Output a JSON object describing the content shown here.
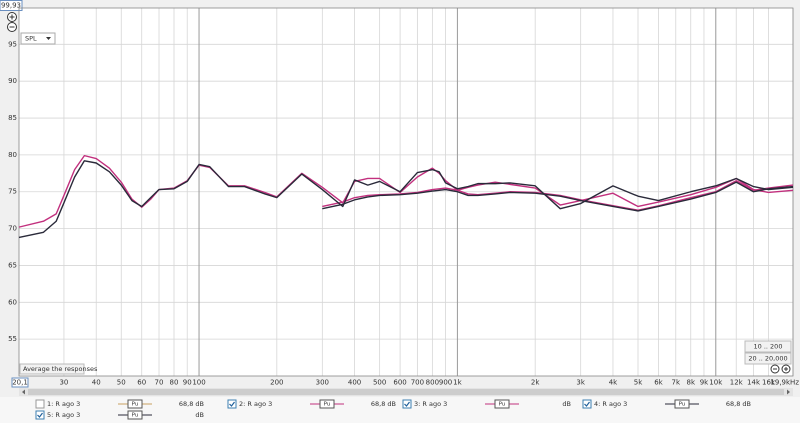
{
  "chart_data": {
    "type": "line",
    "xscale": "log",
    "grid": true,
    "xlim": [
      20.1,
      19900
    ],
    "ylim": [
      50,
      99.93
    ],
    "xticks": [
      {
        "value": 20.1,
        "label": "20,1"
      },
      30,
      40,
      50,
      60,
      70,
      80,
      90,
      100,
      200,
      300,
      400,
      500,
      600,
      700,
      800,
      900,
      {
        "value": 1000,
        "label": "1k"
      },
      {
        "value": 2000,
        "label": "2k"
      },
      {
        "value": 3000,
        "label": "3k"
      },
      {
        "value": 4000,
        "label": "4k"
      },
      {
        "value": 5000,
        "label": "5k"
      },
      {
        "value": 6000,
        "label": "6k"
      },
      {
        "value": 7000,
        "label": "7k"
      },
      {
        "value": 8000,
        "label": "8k"
      },
      {
        "value": 9000,
        "label": "9k"
      },
      {
        "value": 10000,
        "label": "10k"
      },
      {
        "value": 12000,
        "label": "12k"
      },
      {
        "value": 14000,
        "label": "14k"
      },
      {
        "value": 16000,
        "label": "16k"
      },
      {
        "value": 19900,
        "label": "19,9kHz"
      }
    ],
    "yticks": [
      55,
      60,
      65,
      70,
      75,
      80,
      85,
      90,
      95,
      {
        "value": 99.93,
        "label": "99,93"
      }
    ],
    "x": [
      20.1,
      25,
      28,
      30,
      33,
      36,
      40,
      45,
      50,
      55,
      60,
      65,
      70,
      80,
      90,
      100,
      110,
      130,
      150,
      180,
      200,
      250,
      300,
      360,
      400,
      450,
      500,
      600,
      700,
      800,
      850,
      900,
      1000,
      1100,
      1200,
      1400,
      1600,
      2000,
      2500,
      3000,
      4000,
      5000,
      6000,
      8000,
      10000,
      12000,
      14000,
      16000,
      19900
    ],
    "series": [
      {
        "name": "2: R ago 3",
        "color": "#c2307e",
        "checked": true,
        "level": "68,8 dB",
        "values": [
          70.2,
          71.0,
          72.0,
          74.5,
          78.0,
          79.9,
          79.5,
          78.2,
          76.3,
          74.0,
          72.9,
          74.0,
          75.3,
          75.5,
          76.5,
          78.6,
          78.3,
          75.8,
          75.8,
          74.9,
          74.3,
          77.5,
          75.6,
          73.5,
          76.4,
          76.8,
          76.8,
          74.9,
          77.0,
          78.2,
          77.5,
          76.5,
          75.2,
          75.6,
          75.9,
          76.3,
          76.0,
          75.5,
          73.2,
          73.8,
          74.8,
          73.0,
          73.6,
          74.6,
          75.6,
          76.8,
          75.3,
          74.9,
          75.2
        ]
      },
      {
        "name": "3: R ago 3",
        "color": "#c2307e",
        "checked": true,
        "level": "dB",
        "values": [
          null,
          null,
          null,
          null,
          null,
          null,
          null,
          null,
          null,
          null,
          null,
          null,
          null,
          null,
          null,
          null,
          null,
          null,
          null,
          null,
          null,
          null,
          73.0,
          73.6,
          74.2,
          74.5,
          74.6,
          74.7,
          74.9,
          75.3,
          75.4,
          75.5,
          75.2,
          74.7,
          74.6,
          74.8,
          75.0,
          74.9,
          74.5,
          73.9,
          73.1,
          72.5,
          73.1,
          74.2,
          75.0,
          76.5,
          75.2,
          75.5,
          75.9
        ]
      },
      {
        "name": "4: R ago 3",
        "color": "#2a2a3a",
        "checked": true,
        "level": "68,8 dB",
        "values": [
          68.8,
          69.5,
          71.0,
          73.5,
          77.0,
          79.2,
          78.9,
          77.7,
          75.9,
          73.8,
          73.0,
          74.2,
          75.3,
          75.4,
          76.4,
          78.7,
          78.4,
          75.7,
          75.7,
          74.7,
          74.2,
          77.4,
          75.3,
          73.0,
          76.6,
          75.9,
          76.4,
          75.0,
          77.6,
          78.0,
          77.7,
          76.2,
          75.4,
          75.7,
          76.1,
          76.1,
          76.2,
          75.8,
          72.7,
          73.4,
          75.8,
          74.4,
          73.8,
          75.0,
          75.8,
          76.8,
          75.7,
          75.3,
          75.6
        ]
      },
      {
        "name": "5: R ago 3",
        "color": "#2a2a3a",
        "checked": true,
        "level": "dB",
        "values": [
          null,
          null,
          null,
          null,
          null,
          null,
          null,
          null,
          null,
          null,
          null,
          null,
          null,
          null,
          null,
          null,
          null,
          null,
          null,
          null,
          null,
          null,
          72.7,
          73.3,
          73.9,
          74.3,
          74.5,
          74.6,
          74.8,
          75.1,
          75.2,
          75.3,
          75.0,
          74.5,
          74.5,
          74.7,
          74.9,
          74.8,
          74.4,
          73.8,
          73.0,
          72.4,
          73.0,
          74.0,
          74.9,
          76.3,
          75.0,
          75.4,
          75.7
        ]
      }
    ]
  },
  "ui": {
    "spl_select": "SPL",
    "average_button": "Average the responses",
    "range_buttons": [
      "10 .. 200",
      "20 .. 20,000"
    ],
    "trace_button": "Pu",
    "hidden_trace": {
      "name": "1: R ago 3",
      "color": "#c8a060",
      "checked": false,
      "level": "68,8 dB"
    }
  }
}
